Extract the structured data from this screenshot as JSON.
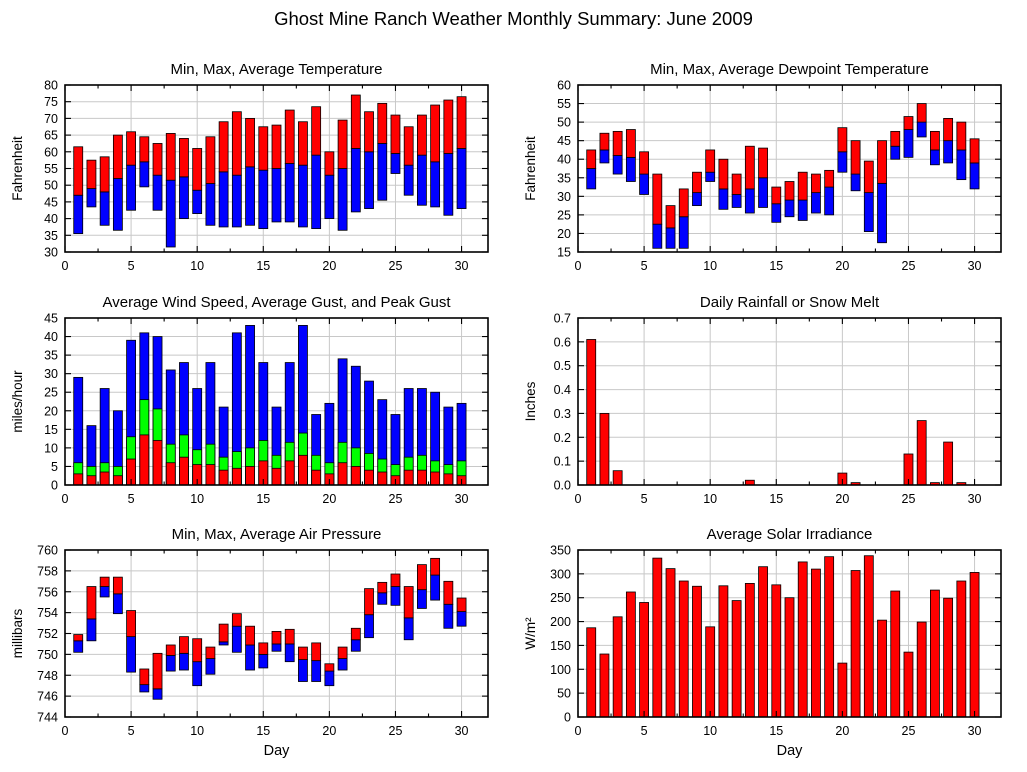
{
  "page_title": "Ghost Mine Ranch Weather Monthly Summary: June 2009",
  "colors": {
    "grid": "#c8c8c8",
    "axis": "#000000",
    "red": "#ff0000",
    "blue": "#0000ff",
    "green": "#00ff00"
  },
  "days": [
    1,
    2,
    3,
    4,
    5,
    6,
    7,
    8,
    9,
    10,
    11,
    12,
    13,
    14,
    15,
    16,
    17,
    18,
    19,
    20,
    21,
    22,
    23,
    24,
    25,
    26,
    27,
    28,
    29,
    30
  ],
  "chart_data": [
    {
      "id": "temperature",
      "type": "range-bar",
      "title": "Min, Max, Average Temperature",
      "ylabel": "Fahrenheit",
      "ylim": [
        30,
        80
      ],
      "ytick_step": 5,
      "y_decimals": 0,
      "xlim": [
        0,
        32
      ],
      "xtick_step": 5,
      "xminor_step": 2.5,
      "grid": true,
      "segment_colors": {
        "min_to_avg": "#0000ff",
        "avg_to_max": "#ff0000"
      },
      "min": [
        35.5,
        43.5,
        38,
        36.5,
        42.5,
        49.5,
        42.5,
        31.5,
        40,
        41.5,
        38,
        37.5,
        37.5,
        38,
        37,
        39,
        39,
        37.5,
        37,
        40,
        36.5,
        42,
        43,
        45.5,
        53.5,
        47,
        44,
        43.5,
        41,
        43
      ],
      "avg": [
        47,
        49,
        48,
        52,
        56,
        57,
        53,
        51.5,
        52.5,
        48.5,
        50.5,
        54,
        53,
        55.5,
        54.5,
        55,
        56.5,
        56,
        59,
        53,
        55,
        61,
        60,
        62.5,
        59.5,
        56,
        59,
        57,
        59.5,
        61
      ],
      "max": [
        61.5,
        57.5,
        58.5,
        65,
        66,
        64.5,
        62.5,
        65.5,
        64,
        61,
        64.5,
        69,
        72,
        70,
        67.5,
        68,
        72.5,
        69,
        73.5,
        60,
        69.5,
        77,
        72,
        74.5,
        71,
        67.5,
        71,
        74,
        75.5,
        76.5
      ]
    },
    {
      "id": "dewpoint",
      "type": "range-bar",
      "title": "Min, Max, Average Dewpoint Temperature",
      "ylabel": "Fahrenheit",
      "ylim": [
        15,
        60
      ],
      "ytick_step": 5,
      "y_decimals": 0,
      "xlim": [
        0,
        32
      ],
      "xtick_step": 5,
      "xminor_step": 2.5,
      "grid": true,
      "segment_colors": {
        "min_to_avg": "#0000ff",
        "avg_to_max": "#ff0000"
      },
      "min": [
        32,
        39,
        36,
        34,
        30.5,
        16,
        16,
        16,
        27.5,
        34,
        26.5,
        27,
        25.5,
        27,
        23,
        24.5,
        23.5,
        25.5,
        25,
        36.5,
        31.5,
        20.5,
        17.5,
        40,
        40.5,
        46,
        38.5,
        39,
        34.5,
        32
      ],
      "avg": [
        37.5,
        42.5,
        41,
        40.5,
        36,
        22.5,
        21.5,
        24.5,
        31,
        36.5,
        32,
        30.5,
        32,
        35,
        28,
        29,
        29,
        31,
        32.5,
        42,
        36,
        31,
        33.5,
        43.5,
        48,
        50,
        42.5,
        45,
        42.5,
        39
      ],
      "max": [
        42.5,
        47,
        47.5,
        48,
        42,
        36,
        27.5,
        32,
        36.5,
        42.5,
        40,
        36,
        43.5,
        43,
        32.5,
        34,
        36.5,
        36,
        37,
        48.5,
        45,
        39.5,
        45,
        47.5,
        51.5,
        55,
        47.5,
        51,
        50,
        45.5
      ]
    },
    {
      "id": "wind",
      "type": "overlay-bar",
      "title": "Average Wind Speed, Average Gust, and Peak Gust",
      "ylabel": "miles/hour",
      "ylim": [
        0,
        45
      ],
      "ytick_step": 5,
      "y_decimals": 0,
      "xlim": [
        0,
        32
      ],
      "xtick_step": 5,
      "xminor_step": 2.5,
      "grid": true,
      "series": [
        {
          "name": "Average Wind Speed",
          "color": "#ff0000",
          "values": [
            3,
            2.5,
            3.5,
            2.5,
            7,
            13.5,
            12,
            6,
            7.5,
            5.5,
            5.5,
            4,
            4.5,
            5,
            6.5,
            4.5,
            6.5,
            8,
            4,
            3,
            6,
            5,
            4,
            3.5,
            2.5,
            4,
            4,
            3.5,
            3,
            2.5
          ]
        },
        {
          "name": "Average Gust",
          "color": "#00ff00",
          "values": [
            6,
            5,
            6,
            5,
            13,
            23,
            20.5,
            11,
            13.5,
            9.5,
            11,
            7.5,
            9,
            10,
            12,
            8,
            11.5,
            14,
            8,
            6,
            11.5,
            10,
            8.5,
            7,
            5.5,
            7.5,
            8,
            6.5,
            5.5,
            6.5
          ]
        },
        {
          "name": "Peak Gust",
          "color": "#0000ff",
          "values": [
            29,
            16,
            26,
            20,
            39,
            41,
            40,
            31,
            33,
            26,
            33,
            21,
            41,
            43,
            33,
            21,
            33,
            43,
            19,
            22,
            34,
            32,
            28,
            23,
            19,
            26,
            26,
            25,
            21,
            22
          ]
        }
      ]
    },
    {
      "id": "rainfall",
      "type": "bar",
      "title": "Daily Rainfall or Snow Melt",
      "ylabel": "Inches",
      "ylim": [
        0,
        0.7
      ],
      "ytick_step": 0.1,
      "y_decimals": 1,
      "xlim": [
        0,
        32
      ],
      "xtick_step": 5,
      "xminor_step": 2.5,
      "grid": true,
      "bar_color": "#ff0000",
      "values": [
        0.61,
        0.3,
        0.06,
        0,
        0,
        0,
        0,
        0,
        0,
        0,
        0,
        0,
        0.02,
        0,
        0,
        0,
        0,
        0,
        0,
        0.05,
        0.01,
        0,
        0,
        0,
        0.13,
        0.27,
        0.01,
        0.18,
        0.01,
        0
      ]
    },
    {
      "id": "pressure",
      "type": "range-bar",
      "title": "Min, Max, Average Air Pressure",
      "ylabel": "millibars",
      "xlabel": "Day",
      "ylim": [
        744,
        760
      ],
      "ytick_step": 2,
      "y_decimals": 0,
      "xlim": [
        0,
        32
      ],
      "xtick_step": 5,
      "xminor_step": 2.5,
      "grid": true,
      "segment_colors": {
        "min_to_avg": "#0000ff",
        "avg_to_max": "#ff0000"
      },
      "min": [
        750.2,
        751.3,
        755.5,
        753.9,
        748.3,
        746.4,
        745.7,
        748.4,
        748.5,
        747.0,
        748.1,
        750.9,
        750.2,
        748.5,
        748.7,
        750.3,
        749.3,
        747.4,
        747.4,
        747.0,
        748.5,
        750.3,
        751.6,
        754.8,
        754.7,
        751.4,
        754.4,
        755.2,
        752.5,
        752.7
      ],
      "avg": [
        751.3,
        753.4,
        756.5,
        755.8,
        751.7,
        747.1,
        746.7,
        749.9,
        750.1,
        749.3,
        749.6,
        751.2,
        752.7,
        750.9,
        750.0,
        751.0,
        751.0,
        749.5,
        749.4,
        748.4,
        749.6,
        751.4,
        753.8,
        755.9,
        756.5,
        753.5,
        756.2,
        757.6,
        754.8,
        754.1
      ],
      "max": [
        751.9,
        756.5,
        757.4,
        757.4,
        754.2,
        748.6,
        750.1,
        750.9,
        751.7,
        751.5,
        750.7,
        752.9,
        753.9,
        752.7,
        751.1,
        752.2,
        752.4,
        750.7,
        751.1,
        749.1,
        750.7,
        752.5,
        756.3,
        756.9,
        757.7,
        756.5,
        758.6,
        759.2,
        757.0,
        755.4
      ]
    },
    {
      "id": "solar",
      "type": "bar",
      "title": "Average Solar Irradiance",
      "ylabel": "W/m²",
      "xlabel": "Day",
      "ylim": [
        0,
        350
      ],
      "ytick_step": 50,
      "y_decimals": 0,
      "xlim": [
        0,
        32
      ],
      "xtick_step": 5,
      "xminor_step": 2.5,
      "grid": true,
      "bar_color": "#ff0000",
      "values": [
        187,
        132,
        210,
        262,
        240,
        333,
        311,
        285,
        274,
        189,
        275,
        244,
        280,
        315,
        277,
        250,
        325,
        310,
        336,
        113,
        307,
        338,
        203,
        264,
        136,
        199,
        266,
        249,
        285,
        303
      ]
    }
  ]
}
